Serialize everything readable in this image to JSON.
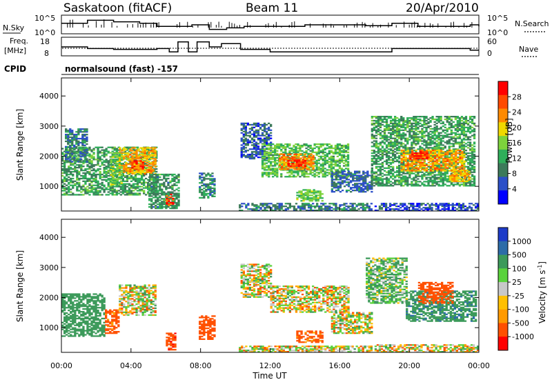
{
  "header": {
    "station": "Saskatoon (fitACF)",
    "beam": "Beam 11",
    "date": "20/Apr/2010"
  },
  "nsky_panel": {
    "left_label": "N.Sky",
    "left_ticks": [
      "10^5",
      "10^0"
    ],
    "right_label": "N.Search",
    "right_ticks": [
      "10^5",
      "10^0"
    ]
  },
  "freq_panel": {
    "left_label_line1": "Freq.",
    "left_label_line2": "[MHz]",
    "left_ticks": [
      "18",
      "8"
    ],
    "right_label": "Nave",
    "right_ticks": [
      "60",
      "0"
    ]
  },
  "cpid": {
    "label": "CPID",
    "value": "normalsound (fast) -157"
  },
  "chart_data": [
    {
      "type": "heatmap",
      "title": "",
      "xlabel": "Time UT",
      "ylabel": "Slant Range [km]",
      "xlim": [
        0,
        24
      ],
      "ylim": [
        180,
        4600
      ],
      "x_tick_labels": [
        "00:00",
        "04:00",
        "08:00",
        "12:00",
        "16:00",
        "20:00",
        "00:00"
      ],
      "y_tick_labels": [
        "1000",
        "2000",
        "3000",
        "4000"
      ],
      "colorbar": {
        "label": "Power [dB]",
        "tick_labels": [
          "28",
          "24",
          "20",
          "16",
          "12",
          "8",
          "4"
        ],
        "range": [
          0,
          30
        ],
        "colors": [
          "#0000ff",
          "#2c50c8",
          "#3c7a5a",
          "#2fae5a",
          "#7dd23c",
          "#f0d800",
          "#ff8a00",
          "#ff4a00",
          "#ff0000"
        ]
      },
      "regions": [
        {
          "t0": 0.0,
          "t1": 5.5,
          "r0": 700,
          "r1": 2300,
          "level": 11
        },
        {
          "t0": 3.3,
          "t1": 5.4,
          "r0": 1400,
          "r1": 2300,
          "level": 20
        },
        {
          "t0": 3.9,
          "t1": 4.7,
          "r0": 1550,
          "r1": 1850,
          "level": 26
        },
        {
          "t0": 0.2,
          "t1": 1.5,
          "r0": 1800,
          "r1": 2900,
          "level": 8
        },
        {
          "t0": 2.8,
          "t1": 3.5,
          "r0": 1000,
          "r1": 2100,
          "level": 14
        },
        {
          "t0": 5.0,
          "t1": 6.7,
          "r0": 250,
          "r1": 1400,
          "level": 10
        },
        {
          "t0": 6.0,
          "t1": 6.4,
          "r0": 350,
          "r1": 750,
          "level": 26
        },
        {
          "t0": 7.9,
          "t1": 8.8,
          "r0": 600,
          "r1": 1450,
          "level": 9
        },
        {
          "t0": 10.2,
          "t1": 17.8,
          "r0": 180,
          "r1": 420,
          "level": 8
        },
        {
          "t0": 10.3,
          "t1": 12.0,
          "r0": 1900,
          "r1": 3100,
          "level": 6
        },
        {
          "t0": 11.5,
          "t1": 16.5,
          "r0": 1300,
          "r1": 2400,
          "level": 13
        },
        {
          "t0": 12.5,
          "t1": 14.5,
          "r0": 1550,
          "r1": 2050,
          "level": 22
        },
        {
          "t0": 13.0,
          "t1": 14.0,
          "r0": 1650,
          "r1": 1900,
          "level": 27
        },
        {
          "t0": 15.5,
          "t1": 17.8,
          "r0": 800,
          "r1": 1500,
          "level": 7
        },
        {
          "t0": 13.5,
          "t1": 15.0,
          "r0": 500,
          "r1": 900,
          "level": 14
        },
        {
          "t0": 17.8,
          "t1": 23.8,
          "r0": 1000,
          "r1": 3300,
          "level": 11
        },
        {
          "t0": 19.5,
          "t1": 23.2,
          "r0": 1500,
          "r1": 2200,
          "level": 21
        },
        {
          "t0": 20.0,
          "t1": 21.0,
          "r0": 1900,
          "r1": 2150,
          "level": 27
        },
        {
          "t0": 22.3,
          "t1": 23.5,
          "r0": 1150,
          "r1": 1550,
          "level": 20
        },
        {
          "t0": 18.0,
          "t1": 24.0,
          "r0": 180,
          "r1": 450,
          "level": 5
        }
      ]
    },
    {
      "type": "heatmap",
      "title": "",
      "xlabel": "Time UT",
      "ylabel": "Slant Range [km]",
      "xlim": [
        0,
        24
      ],
      "ylim": [
        180,
        4600
      ],
      "x_tick_labels": [
        "00:00",
        "04:00",
        "08:00",
        "12:00",
        "16:00",
        "20:00",
        "00:00"
      ],
      "y_tick_labels": [
        "1000",
        "2000",
        "3000",
        "4000"
      ],
      "colorbar": {
        "label": "Velocity [m s^-1]",
        "tick_labels": [
          "1000",
          "500",
          "100",
          "25",
          "-25",
          "-100",
          "-500",
          "-1000"
        ],
        "range": [
          -1000,
          1000
        ],
        "colors": [
          "#ff0000",
          "#ff5000",
          "#ff9a00",
          "#ffc000",
          "#c8c8c8",
          "#5ad23c",
          "#3c9a5a",
          "#2c6ca8",
          "#1e3cc8"
        ]
      },
      "regions": [
        {
          "t0": 0.0,
          "t1": 2.5,
          "r0": 700,
          "r1": 2100,
          "level": 250
        },
        {
          "t0": 2.5,
          "t1": 3.3,
          "r0": 800,
          "r1": 1600,
          "level": -200
        },
        {
          "t0": 3.3,
          "t1": 5.4,
          "r0": 1400,
          "r1": 2400,
          "level": 0
        },
        {
          "t0": 6.0,
          "t1": 6.6,
          "r0": 250,
          "r1": 800,
          "level": -400
        },
        {
          "t0": 7.9,
          "t1": 8.8,
          "r0": 600,
          "r1": 1400,
          "level": -300
        },
        {
          "t0": 10.3,
          "t1": 12.0,
          "r0": 2000,
          "r1": 3100,
          "level": 0
        },
        {
          "t0": 12.0,
          "t1": 16.5,
          "r0": 1500,
          "r1": 2400,
          "level": 0
        },
        {
          "t0": 13.5,
          "t1": 15.0,
          "r0": 500,
          "r1": 900,
          "level": -200
        },
        {
          "t0": 15.5,
          "t1": 17.8,
          "r0": 800,
          "r1": 1500,
          "level": 0
        },
        {
          "t0": 10.2,
          "t1": 17.8,
          "r0": 180,
          "r1": 400,
          "level": 0
        },
        {
          "t0": 17.5,
          "t1": 19.8,
          "r0": 1800,
          "r1": 3300,
          "level": 100
        },
        {
          "t0": 19.8,
          "t1": 23.8,
          "r0": 1200,
          "r1": 2200,
          "level": 400
        },
        {
          "t0": 20.5,
          "t1": 22.5,
          "r0": 1800,
          "r1": 2500,
          "level": -300
        },
        {
          "t0": 18.0,
          "t1": 24.0,
          "r0": 180,
          "r1": 420,
          "level": 0
        }
      ]
    },
    {
      "type": "line",
      "title": "",
      "series_note": "",
      "series": [
        {
          "name": "N.Sky",
          "x": [
            0,
            1.5,
            3,
            4.5,
            5.5,
            6.5,
            7.5,
            8.5,
            9.5,
            10.5,
            12,
            14,
            16,
            17.5,
            19,
            20.5,
            22,
            23.5,
            24
          ],
          "y": [
            3,
            4,
            3.5,
            3,
            2,
            2,
            2.5,
            1,
            1.5,
            2,
            2,
            2.5,
            2.5,
            2.2,
            3,
            2,
            2,
            2.5,
            2
          ]
        }
      ]
    },
    {
      "type": "line",
      "title": "",
      "series": [
        {
          "name": "Freq.",
          "x": [
            0,
            1.5,
            3,
            4.5,
            5.5,
            6.2,
            6.7,
            7.3,
            7.8,
            8.5,
            9.2,
            10.3,
            12,
            14,
            17.5,
            19,
            20,
            22,
            23.5,
            24
          ],
          "y": [
            13,
            12,
            11.5,
            11.5,
            12,
            10,
            16,
            10,
            16,
            13,
            15,
            11.5,
            10,
            10,
            10,
            12,
            12,
            12,
            11,
            11
          ]
        }
      ]
    }
  ]
}
